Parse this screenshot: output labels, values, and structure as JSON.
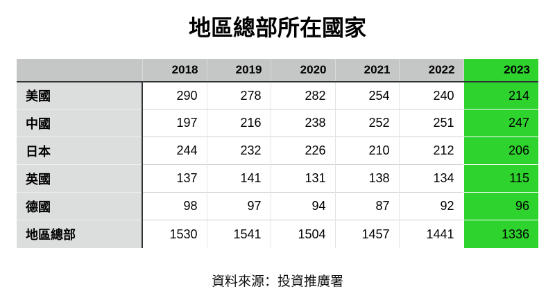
{
  "title": "地區總部所在國家",
  "source": "資料來源：投資推廣署",
  "colors": {
    "highlight_green": "#2ed32e",
    "header_gray": "#c5c6c6",
    "label_gray": "#dcdddd"
  },
  "chart_data": {
    "type": "table",
    "title": "地區總部所在國家",
    "columns": [
      "",
      "2018",
      "2019",
      "2020",
      "2021",
      "2022",
      "2023"
    ],
    "highlight_column": "2023",
    "rows": [
      {
        "label": "美國",
        "values": [
          290,
          278,
          282,
          254,
          240,
          214
        ]
      },
      {
        "label": "中國",
        "values": [
          197,
          216,
          238,
          252,
          251,
          247
        ]
      },
      {
        "label": "日本",
        "values": [
          244,
          232,
          226,
          210,
          212,
          206
        ]
      },
      {
        "label": "英國",
        "values": [
          137,
          141,
          131,
          138,
          134,
          115
        ]
      },
      {
        "label": "德國",
        "values": [
          98,
          97,
          94,
          87,
          92,
          96
        ]
      },
      {
        "label": "地區總部",
        "values": [
          1530,
          1541,
          1504,
          1457,
          1441,
          1336
        ]
      }
    ],
    "source_note": "資料來源：投資推廣署"
  }
}
